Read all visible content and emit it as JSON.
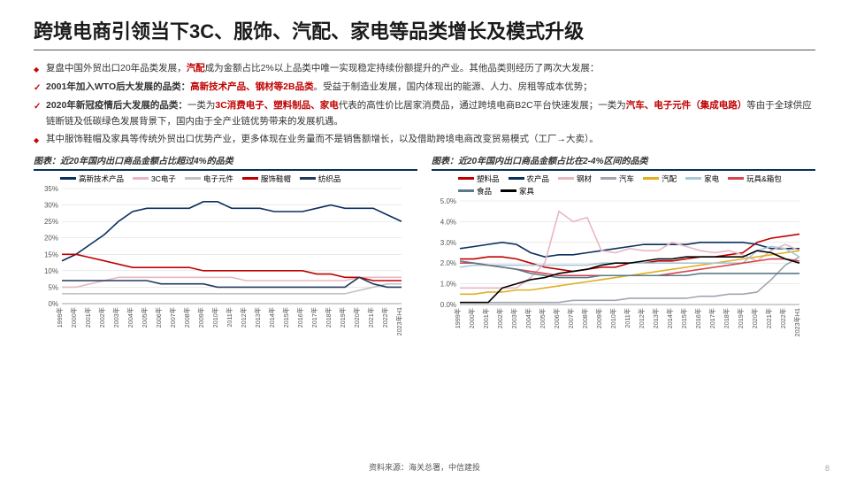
{
  "title": "跨境电商引领当下3C、服饰、汽配、家电等品类增长及模式升级",
  "bullets": [
    {
      "type": "dot",
      "plain": "复盘中国外贸出口20年品类发展，",
      "hl": "汽配",
      "rest": "成为金额占比2%以上品类中唯一实现稳定持续份额提升的产业。其他品类则经历了两次大发展："
    },
    {
      "type": "check",
      "bold": "2001年加入WTO后大发展的品类：",
      "hl": "高新技术产品、钢材等2B品类",
      "rest": "。受益于制造业发展，国内体现出的能源、人力、房租等成本优势；"
    },
    {
      "type": "check",
      "bold": "2020年新冠疫情后大发展的品类：",
      "plain": "一类为",
      "hl": "3C消费电子、塑料制品、家电",
      "mid": "代表的高性价比居家消费品，通过跨境电商B2C平台快速发展；一类为",
      "hl2": "汽车、电子元件（集成电路）",
      "rest": "等由于全球供应链断链及低碳绿色发展背景下，国内由于全产业链优势带来的发展机遇。"
    },
    {
      "type": "dot",
      "plain": "其中服饰鞋帽及家具等传统外贸出口优势产业，更多体现在业务量而不是销售额增长，以及借助跨境电商改变贸易模式（工厂→大卖）。"
    }
  ],
  "left_chart": {
    "title": "图表：近20年国内出口商品金额占比超过4%的品类",
    "categories": [
      "1999年",
      "2000年",
      "2001年",
      "2002年",
      "2003年",
      "2004年",
      "2005年",
      "2006年",
      "2007年",
      "2008年",
      "2009年",
      "2010年",
      "2011年",
      "2012年",
      "2013年",
      "2014年",
      "2015年",
      "2016年",
      "2017年",
      "2018年",
      "2019年",
      "2020年",
      "2021年",
      "2022年",
      "2023年H1"
    ],
    "ymax": 35,
    "ytick": 5,
    "series": [
      {
        "name": "高新技术产品",
        "color": "#0b2f5e",
        "values": [
          13,
          15,
          18,
          21,
          25,
          28,
          29,
          29,
          29,
          29,
          31,
          31,
          29,
          29,
          29,
          28,
          28,
          28,
          29,
          30,
          29,
          29,
          29,
          27,
          25
        ]
      },
      {
        "name": "3C电子",
        "color": "#e9b7c1",
        "values": [
          5,
          5,
          6,
          7,
          8,
          8,
          8,
          8,
          8,
          8,
          8,
          8,
          8,
          7,
          7,
          7,
          7,
          7,
          7,
          7,
          7,
          8,
          8,
          8,
          8
        ]
      },
      {
        "name": "电子元件",
        "color": "#c2c2c2",
        "values": [
          3,
          3,
          3,
          3,
          3,
          3,
          3,
          3,
          3,
          3,
          3,
          3,
          3,
          3,
          3,
          3,
          3,
          3,
          3,
          3,
          3,
          4,
          5,
          6,
          6
        ]
      },
      {
        "name": "服饰鞋帽",
        "color": "#c00000",
        "values": [
          15,
          15,
          14,
          13,
          12,
          11,
          11,
          11,
          11,
          11,
          10,
          10,
          10,
          10,
          10,
          10,
          10,
          10,
          9,
          9,
          8,
          8,
          7,
          7,
          7
        ]
      },
      {
        "name": "纺织品",
        "color": "#223a5e",
        "values": [
          7,
          7,
          7,
          7,
          7,
          7,
          7,
          6,
          6,
          6,
          6,
          5,
          5,
          5,
          5,
          5,
          5,
          5,
          5,
          5,
          5,
          8,
          6,
          5,
          5
        ]
      }
    ]
  },
  "right_chart": {
    "title": "图表：近20年国内出口商品金额占比在2-4%区间的品类",
    "categories": [
      "1999年",
      "2000年",
      "2001年",
      "2002年",
      "2003年",
      "2004年",
      "2005年",
      "2006年",
      "2007年",
      "2008年",
      "2009年",
      "2010年",
      "2011年",
      "2012年",
      "2013年",
      "2014年",
      "2015年",
      "2016年",
      "2017年",
      "2018年",
      "2019年",
      "2020年",
      "2021年",
      "2022年",
      "2023年H1"
    ],
    "ymax": 5,
    "ytick": 1,
    "series": [
      {
        "name": "塑料品",
        "color": "#c00000",
        "values": [
          2.2,
          2.2,
          2.3,
          2.3,
          2.2,
          2.0,
          1.8,
          1.7,
          1.6,
          1.7,
          1.8,
          1.8,
          2.0,
          2.0,
          2.1,
          2.1,
          2.2,
          2.3,
          2.3,
          2.4,
          2.5,
          3.0,
          3.2,
          3.3,
          3.4
        ]
      },
      {
        "name": "农产品",
        "color": "#0b2f5e",
        "values": [
          2.7,
          2.8,
          2.9,
          3.0,
          2.9,
          2.5,
          2.3,
          2.4,
          2.4,
          2.5,
          2.6,
          2.7,
          2.8,
          2.9,
          2.9,
          2.9,
          2.9,
          3.0,
          3.0,
          3.0,
          3.0,
          2.9,
          2.7,
          2.7,
          2.7
        ]
      },
      {
        "name": "钢材",
        "color": "#e9b7c1",
        "values": [
          0.8,
          0.8,
          0.8,
          0.8,
          0.8,
          1.3,
          2.0,
          4.5,
          4.0,
          4.2,
          2.6,
          2.5,
          2.7,
          2.6,
          2.6,
          3.0,
          2.8,
          2.6,
          2.5,
          2.6,
          2.4,
          2.1,
          2.6,
          2.9,
          2.6
        ]
      },
      {
        "name": "汽车",
        "color": "#9fa6b0",
        "values": [
          0.1,
          0.1,
          0.1,
          0.1,
          0.1,
          0.1,
          0.1,
          0.1,
          0.2,
          0.2,
          0.2,
          0.2,
          0.3,
          0.3,
          0.3,
          0.3,
          0.3,
          0.4,
          0.4,
          0.5,
          0.5,
          0.6,
          1.2,
          1.9,
          2.3
        ]
      },
      {
        "name": "汽配",
        "color": "#e0b020",
        "values": [
          0.5,
          0.5,
          0.6,
          0.6,
          0.7,
          0.7,
          0.8,
          0.9,
          1.0,
          1.1,
          1.2,
          1.3,
          1.4,
          1.5,
          1.6,
          1.7,
          1.8,
          1.9,
          2.0,
          2.1,
          2.2,
          2.3,
          2.4,
          2.5,
          2.6
        ]
      },
      {
        "name": "家电",
        "color": "#a8c8d8",
        "values": [
          1.8,
          1.9,
          1.9,
          1.9,
          1.9,
          1.9,
          1.9,
          1.9,
          1.9,
          1.9,
          2.0,
          2.0,
          2.0,
          2.0,
          2.0,
          2.0,
          2.0,
          2.0,
          2.0,
          2.0,
          2.0,
          2.6,
          2.8,
          2.7,
          2.3
        ]
      },
      {
        "name": "玩具&箱包",
        "color": "#d64550",
        "values": [
          2.0,
          2.0,
          1.9,
          1.8,
          1.7,
          1.6,
          1.5,
          1.4,
          1.4,
          1.4,
          1.4,
          1.4,
          1.4,
          1.4,
          1.4,
          1.5,
          1.6,
          1.7,
          1.8,
          1.9,
          2.0,
          2.1,
          2.2,
          2.2,
          2.1
        ]
      },
      {
        "name": "食品",
        "color": "#5a7a8a",
        "values": [
          2.1,
          2.0,
          1.9,
          1.8,
          1.7,
          1.5,
          1.4,
          1.3,
          1.3,
          1.3,
          1.4,
          1.4,
          1.4,
          1.4,
          1.4,
          1.4,
          1.4,
          1.5,
          1.5,
          1.5,
          1.5,
          1.5,
          1.5,
          1.5,
          1.5
        ]
      },
      {
        "name": "家具",
        "color": "#000000",
        "values": [
          0.1,
          0.1,
          0.1,
          0.8,
          1.0,
          1.2,
          1.3,
          1.5,
          1.6,
          1.7,
          1.9,
          2.0,
          2.0,
          2.1,
          2.2,
          2.2,
          2.3,
          2.3,
          2.3,
          2.3,
          2.3,
          2.6,
          2.5,
          2.2,
          2.0
        ]
      }
    ]
  },
  "footer": "资料来源：海关总署，中信建投",
  "page": "8"
}
